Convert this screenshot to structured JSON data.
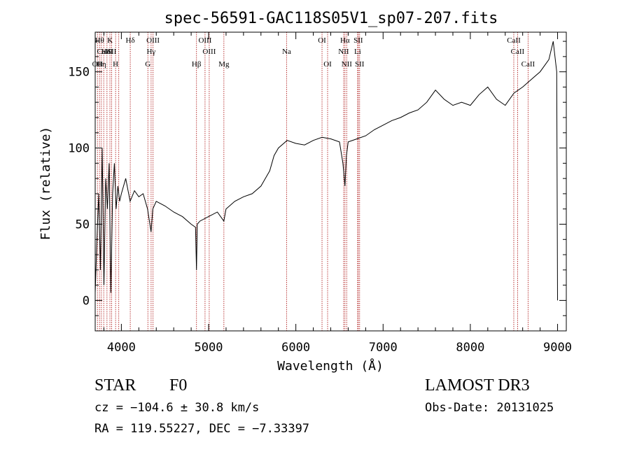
{
  "chart_data": {
    "type": "line",
    "title": "spec-56591-GAC118S05V1_sp07-207.fits",
    "xlabel": "Wavelength (Å)",
    "ylabel": "Flux (relative)",
    "xlim": [
      3700,
      9100
    ],
    "ylim": [
      -20,
      176
    ],
    "x_ticks": [
      4000,
      5000,
      6000,
      7000,
      8000,
      9000
    ],
    "y_ticks": [
      0,
      50,
      100,
      150
    ],
    "series": [
      {
        "name": "flux",
        "x": [
          3700,
          3720,
          3740,
          3760,
          3780,
          3800,
          3820,
          3840,
          3860,
          3880,
          3900,
          3920,
          3940,
          3960,
          3980,
          4000,
          4050,
          4100,
          4150,
          4200,
          4250,
          4300,
          4340,
          4360,
          4400,
          4500,
          4600,
          4700,
          4800,
          4850,
          4861,
          4870,
          4900,
          5000,
          5100,
          5175,
          5200,
          5300,
          5400,
          5500,
          5600,
          5700,
          5750,
          5800,
          5900,
          6000,
          6100,
          6200,
          6300,
          6400,
          6500,
          6540,
          6563,
          6580,
          6600,
          6700,
          6800,
          6900,
          7000,
          7100,
          7200,
          7300,
          7400,
          7500,
          7600,
          7700,
          7800,
          7900,
          8000,
          8100,
          8200,
          8300,
          8400,
          8500,
          8600,
          8700,
          8800,
          8900,
          8950,
          8990,
          9000
        ],
        "y": [
          5,
          40,
          70,
          20,
          100,
          10,
          80,
          60,
          90,
          5,
          70,
          90,
          60,
          75,
          65,
          70,
          80,
          65,
          72,
          68,
          70,
          60,
          45,
          60,
          65,
          62,
          58,
          55,
          50,
          48,
          20,
          50,
          52,
          55,
          58,
          52,
          60,
          65,
          68,
          70,
          75,
          85,
          95,
          100,
          105,
          103,
          102,
          105,
          107,
          106,
          104,
          90,
          75,
          95,
          104,
          106,
          108,
          112,
          115,
          118,
          120,
          123,
          125,
          130,
          138,
          132,
          128,
          130,
          128,
          135,
          140,
          132,
          128,
          136,
          140,
          145,
          150,
          158,
          170,
          150,
          0
        ]
      }
    ],
    "lines": [
      {
        "x": 3726,
        "label": "OII",
        "row": 2
      },
      {
        "x": 3750,
        "label": "Hθ",
        "row": 0
      },
      {
        "x": 3771,
        "label": "Hη",
        "row": 2
      },
      {
        "x": 3798,
        "label": "CaII",
        "row": 1
      },
      {
        "x": 3835,
        "label": "HeI",
        "row": 1
      },
      {
        "x": 3869,
        "label": "K",
        "row": 0
      },
      {
        "x": 3889,
        "label": "SII",
        "row": 1
      },
      {
        "x": 3934,
        "label": "H",
        "row": 2
      },
      {
        "x": 3970,
        "label": "",
        "row": 0
      },
      {
        "x": 4102,
        "label": "Hδ",
        "row": 0
      },
      {
        "x": 4304,
        "label": "G",
        "row": 2
      },
      {
        "x": 4341,
        "label": "Hγ",
        "row": 1
      },
      {
        "x": 4363,
        "label": "OIII",
        "row": 0
      },
      {
        "x": 4861,
        "label": "Hβ",
        "row": 2
      },
      {
        "x": 4959,
        "label": "OIII",
        "row": 0
      },
      {
        "x": 5007,
        "label": "OIII",
        "row": 1
      },
      {
        "x": 5175,
        "label": "Mg",
        "row": 2
      },
      {
        "x": 5894,
        "label": "Na",
        "row": 1
      },
      {
        "x": 6300,
        "label": "OI",
        "row": 0
      },
      {
        "x": 6364,
        "label": "OI",
        "row": 2
      },
      {
        "x": 6548,
        "label": "NII",
        "row": 1
      },
      {
        "x": 6563,
        "label": "Hα",
        "row": 0
      },
      {
        "x": 6583,
        "label": "NII",
        "row": 2
      },
      {
        "x": 6708,
        "label": "Li",
        "row": 1
      },
      {
        "x": 6716,
        "label": "SII",
        "row": 0
      },
      {
        "x": 6731,
        "label": "SII",
        "row": 2
      },
      {
        "x": 8498,
        "label": "CaII",
        "row": 0
      },
      {
        "x": 8542,
        "label": "CaII",
        "row": 1
      },
      {
        "x": 8662,
        "label": "CaII",
        "row": 2
      }
    ]
  },
  "info": {
    "class_label": "STAR",
    "subclass_label": "F0",
    "survey": "LAMOST DR3",
    "redshift": "cz = −104.6 ± 30.8 km/s",
    "obs_date": "Obs-Date: 20131025",
    "coords": "RA = 119.55227, DEC =  −7.33397"
  }
}
